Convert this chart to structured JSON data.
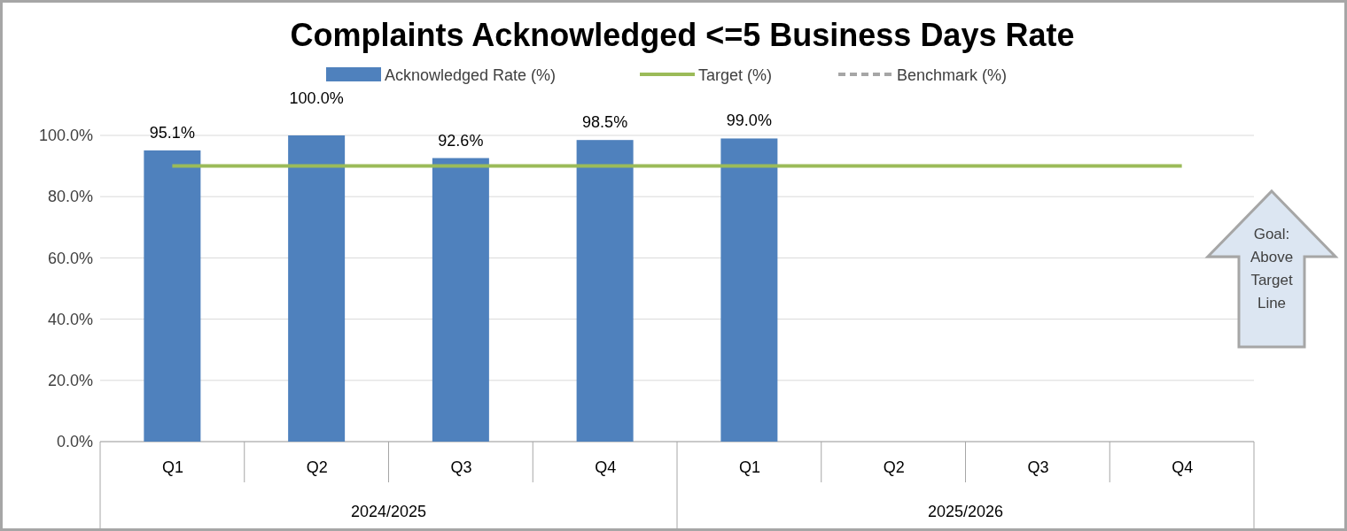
{
  "chart_data": {
    "type": "bar",
    "title": "Complaints Acknowledged <=5 Business Days Rate",
    "categories": [
      "Q1",
      "Q2",
      "Q3",
      "Q4",
      "Q1",
      "Q2",
      "Q3",
      "Q4"
    ],
    "series": [
      {
        "name": "Acknowledged Rate (%)",
        "color": "#4f81bd",
        "values": [
          95.1,
          100.0,
          92.6,
          98.5,
          99.0,
          null,
          null,
          null
        ],
        "value_labels": [
          "95.1%",
          "100.0%",
          "92.6%",
          "98.5%",
          "99.0%",
          null,
          null,
          null
        ]
      },
      {
        "name": "Target (%)",
        "type": "line",
        "color": "#9bbb59",
        "values": [
          90,
          90,
          90,
          90,
          90,
          90,
          90,
          90
        ]
      },
      {
        "name": "Benchmark (%)",
        "type": "line",
        "color": "#a6a6a6",
        "line_style": "dashed",
        "values": [
          null,
          null,
          null,
          null,
          null,
          null,
          null,
          null
        ]
      }
    ],
    "ylim": [
      0,
      100
    ],
    "yticks": [
      {
        "value": 0,
        "label": "0.0%"
      },
      {
        "value": 20,
        "label": "20.0%"
      },
      {
        "value": 40,
        "label": "40.0%"
      },
      {
        "value": 60,
        "label": "60.0%"
      },
      {
        "value": 80,
        "label": "80.0%"
      },
      {
        "value": 100,
        "label": "100.0%"
      }
    ],
    "grid": "y",
    "legend": "top",
    "marker": "none",
    "annotations": [
      "2024/2025",
      "2025/2026",
      "Goal: Above Target Line"
    ]
  }
}
